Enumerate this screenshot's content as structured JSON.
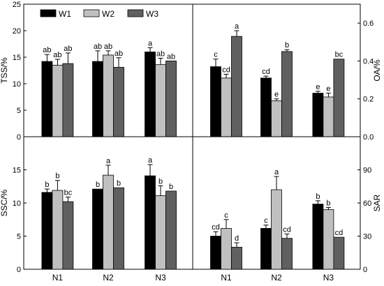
{
  "chart_data": {
    "type": "bar",
    "legend": {
      "placement": "top-left",
      "entries": [
        {
          "name": "W1",
          "color": "#000000"
        },
        {
          "name": "W2",
          "color": "#c0c0c0"
        },
        {
          "name": "W3",
          "color": "#606060"
        }
      ]
    },
    "categories": [
      "N1",
      "N2",
      "N3"
    ],
    "error_bars": true,
    "grid": false,
    "panels": [
      {
        "id": "tss",
        "ylabel": "TSS/%",
        "ylim": [
          0,
          25
        ],
        "yticks": [
          "0",
          "5",
          "10",
          "15",
          "20",
          "25"
        ],
        "yaxis_side": "left",
        "series": [
          {
            "name": "W1",
            "values": [
              14.2,
              14.2,
              16.0
            ],
            "errors": [
              1.3,
              2.0,
              0.8
            ],
            "labels": [
              "ab",
              "ab",
              "a"
            ]
          },
          {
            "name": "W2",
            "values": [
              13.5,
              15.4,
              13.6
            ],
            "errors": [
              1.1,
              0.8,
              1.2
            ],
            "labels": [
              "ab",
              "ab",
              "ab"
            ]
          },
          {
            "name": "W3",
            "values": [
              13.8,
              13.1,
              14.3
            ],
            "errors": [
              2.0,
              1.8,
              0.0
            ],
            "labels": [
              "ab",
              "ab",
              "ab"
            ]
          }
        ]
      },
      {
        "id": "oa",
        "ylabel": "OA/%",
        "ylim": [
          0,
          0.7
        ],
        "yticks": [
          "0.0",
          "0.2",
          "0.4",
          "0.6"
        ],
        "yaxis_side": "right",
        "series": [
          {
            "name": "W1",
            "values": [
              0.37,
              0.31,
              0.23
            ],
            "errors": [
              0.04,
              0.01,
              0.01
            ],
            "labels": [
              "c",
              "cd",
              "e"
            ]
          },
          {
            "name": "W2",
            "values": [
              0.31,
              0.19,
              0.21
            ],
            "errors": [
              0.02,
              0.01,
              0.02
            ],
            "labels": [
              "cd",
              "e",
              "e"
            ]
          },
          {
            "name": "W3",
            "values": [
              0.53,
              0.45,
              0.41
            ],
            "errors": [
              0.03,
              0.01,
              0.0
            ],
            "labels": [
              "a",
              "b",
              "bc"
            ]
          }
        ]
      },
      {
        "id": "ssc",
        "ylabel": "SSC/%",
        "ylim": [
          0,
          20
        ],
        "yticks": [
          "0",
          "5",
          "10",
          "15"
        ],
        "yaxis_side": "left",
        "series": [
          {
            "name": "W1",
            "values": [
              11.6,
              12.1,
              14.1
            ],
            "errors": [
              0.5,
              0.0,
              1.7
            ],
            "labels": [
              "b",
              "b",
              "a"
            ]
          },
          {
            "name": "W2",
            "values": [
              11.9,
              14.2,
              11.1
            ],
            "errors": [
              1.5,
              1.5,
              1.5
            ],
            "labels": [
              "b",
              "a",
              "b"
            ]
          },
          {
            "name": "W3",
            "values": [
              10.2,
              12.3,
              11.8
            ],
            "errors": [
              0.7,
              0.0,
              0.0
            ],
            "labels": [
              "bc",
              "b",
              "b"
            ]
          }
        ]
      },
      {
        "id": "sar",
        "ylabel": "SAR",
        "ylim": [
          0,
          120
        ],
        "yticks": [
          "0",
          "30",
          "60",
          "90"
        ],
        "yaxis_side": "right",
        "series": [
          {
            "name": "W1",
            "values": [
              30,
              37,
              59
            ],
            "errors": [
              4,
              3,
              3
            ],
            "labels": [
              "cd",
              "c",
              "b"
            ]
          },
          {
            "name": "W2",
            "values": [
              37,
              72,
              54
            ],
            "errors": [
              8,
              12,
              2
            ],
            "labels": [
              "c",
              "a",
              "b"
            ]
          },
          {
            "name": "W3",
            "values": [
              20,
              28,
              29
            ],
            "errors": [
              4,
              4,
              0
            ],
            "labels": [
              "d",
              "cd",
              "cd"
            ]
          }
        ]
      }
    ]
  }
}
